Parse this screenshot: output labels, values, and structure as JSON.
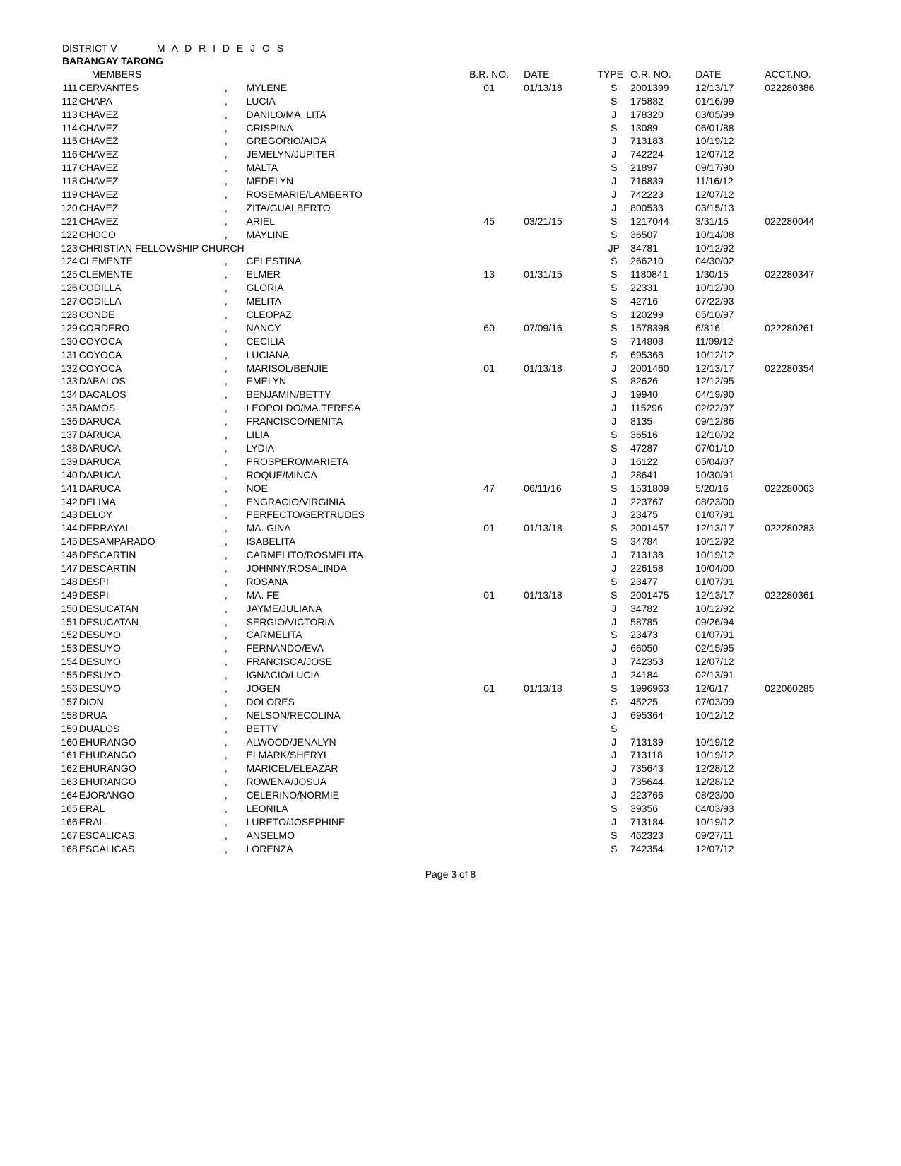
{
  "header": {
    "district": "DISTRICT V",
    "municipality": "M A D R I D E J O S",
    "barangay_label": "BARANGAY  TARONG",
    "members_label": "MEMBERS"
  },
  "columns": {
    "br_no": "B.R. NO.",
    "date": "DATE",
    "type": "TYPE",
    "or_no": "O.R. NO.",
    "or_date": "DATE",
    "acct_no": "ACCT.NO."
  },
  "rows": [
    {
      "num": "111",
      "last": "CERVANTES",
      "comma": ",",
      "first": "MYLENE",
      "br": "01",
      "date": "01/13/18",
      "type": "S",
      "or": "2001399",
      "ordate": "12/13/17",
      "acct": "022280386"
    },
    {
      "num": "112",
      "last": "CHAPA",
      "comma": ",",
      "first": "LUCIA",
      "br": "",
      "date": "",
      "type": "S",
      "or": "175882",
      "ordate": "01/16/99",
      "acct": ""
    },
    {
      "num": "113",
      "last": "CHAVEZ",
      "comma": ",",
      "first": "DANILO/MA. LITA",
      "br": "",
      "date": "",
      "type": "J",
      "or": "178320",
      "ordate": "03/05/99",
      "acct": ""
    },
    {
      "num": "114",
      "last": "CHAVEZ",
      "comma": ",",
      "first": "CRISPINA",
      "br": "",
      "date": "",
      "type": "S",
      "or": "13089",
      "ordate": "06/01/88",
      "acct": ""
    },
    {
      "num": "115",
      "last": "CHAVEZ",
      "comma": ",",
      "first": "GREGORIO/AIDA",
      "br": "",
      "date": "",
      "type": "J",
      "or": "713183",
      "ordate": "10/19/12",
      "acct": ""
    },
    {
      "num": "116",
      "last": "CHAVEZ",
      "comma": ",",
      "first": "JEMELYN/JUPITER",
      "br": "",
      "date": "",
      "type": "J",
      "or": "742224",
      "ordate": "12/07/12",
      "acct": ""
    },
    {
      "num": "117",
      "last": "CHAVEZ",
      "comma": ",",
      "first": "MALTA",
      "br": "",
      "date": "",
      "type": "S",
      "or": "21897",
      "ordate": "09/17/90",
      "acct": ""
    },
    {
      "num": "118",
      "last": "CHAVEZ",
      "comma": ",",
      "first": "MEDELYN",
      "br": "",
      "date": "",
      "type": "J",
      "or": "716839",
      "ordate": "11/16/12",
      "acct": ""
    },
    {
      "num": "119",
      "last": "CHAVEZ",
      "comma": ",",
      "first": "ROSEMARIE/LAMBERTO",
      "br": "",
      "date": "",
      "type": "J",
      "or": "742223",
      "ordate": "12/07/12",
      "acct": ""
    },
    {
      "num": "120",
      "last": "CHAVEZ",
      "comma": ",",
      "first": "ZITA/GUALBERTO",
      "br": "",
      "date": "",
      "type": "J",
      "or": "800533",
      "ordate": "03/15/13",
      "acct": ""
    },
    {
      "num": "121",
      "last": "CHAVEZ",
      "comma": ",",
      "first": "ARIEL",
      "br": "45",
      "date": "03/21/15",
      "type": "S",
      "or": "1217044",
      "ordate": "3/31/15",
      "acct": "022280044"
    },
    {
      "num": "122",
      "last": "CHOCO",
      "comma": ",",
      "first": "MAYLINE",
      "br": "",
      "date": "",
      "type": "S",
      "or": "36507",
      "ordate": "10/14/08",
      "acct": ""
    },
    {
      "num": "123",
      "last": "CHRISTIAN FELLOWSHIP CHURCH",
      "comma": "",
      "first": "",
      "br": "",
      "date": "",
      "type": "JP",
      "or": "34781",
      "ordate": "10/12/92",
      "acct": "",
      "span": true
    },
    {
      "num": "124",
      "last": "CLEMENTE",
      "comma": ",",
      "first": "CELESTINA",
      "br": "",
      "date": "",
      "type": "S",
      "or": "266210",
      "ordate": "04/30/02",
      "acct": ""
    },
    {
      "num": "125",
      "last": "CLEMENTE",
      "comma": ",",
      "first": "ELMER",
      "br": "13",
      "date": "01/31/15",
      "type": "S",
      "or": "1180841",
      "ordate": "1/30/15",
      "acct": "022280347"
    },
    {
      "num": "126",
      "last": "CODILLA",
      "comma": ",",
      "first": "GLORIA",
      "br": "",
      "date": "",
      "type": "S",
      "or": "22331",
      "ordate": "10/12/90",
      "acct": ""
    },
    {
      "num": "127",
      "last": "CODILLA",
      "comma": ",",
      "first": "MELITA",
      "br": "",
      "date": "",
      "type": "S",
      "or": "42716",
      "ordate": "07/22/93",
      "acct": ""
    },
    {
      "num": "128",
      "last": "CONDE",
      "comma": ",",
      "first": "CLEOPAZ",
      "br": "",
      "date": "",
      "type": "S",
      "or": "120299",
      "ordate": "05/10/97",
      "acct": ""
    },
    {
      "num": "129",
      "last": "CORDERO",
      "comma": ",",
      "first": "NANCY",
      "br": "60",
      "date": "07/09/16",
      "type": "S",
      "or": "1578398",
      "ordate": "6/816",
      "acct": "022280261"
    },
    {
      "num": "130",
      "last": "COYOCA",
      "comma": ",",
      "first": "CECILIA",
      "br": "",
      "date": "",
      "type": "S",
      "or": "714808",
      "ordate": "11/09/12",
      "acct": ""
    },
    {
      "num": "131",
      "last": "COYOCA",
      "comma": ",",
      "first": "LUCIANA",
      "br": "",
      "date": "",
      "type": "S",
      "or": "695368",
      "ordate": "10/12/12",
      "acct": ""
    },
    {
      "num": "132",
      "last": "COYOCA",
      "comma": ",",
      "first": "MARISOL/BENJIE",
      "br": "01",
      "date": "01/13/18",
      "type": "J",
      "or": "2001460",
      "ordate": "12/13/17",
      "acct": "022280354"
    },
    {
      "num": "133",
      "last": "DABALOS",
      "comma": ",",
      "first": "EMELYN",
      "br": "",
      "date": "",
      "type": "S",
      "or": "82626",
      "ordate": "12/12/95",
      "acct": ""
    },
    {
      "num": "134",
      "last": "DACALOS",
      "comma": ",",
      "first": "BENJAMIN/BETTY",
      "br": "",
      "date": "",
      "type": "J",
      "or": "19940",
      "ordate": "04/19/90",
      "acct": ""
    },
    {
      "num": "135",
      "last": "DAMOS",
      "comma": ",",
      "first": "LEOPOLDO/MA.TERESA",
      "br": "",
      "date": "",
      "type": "J",
      "or": "115296",
      "ordate": "02/22/97",
      "acct": ""
    },
    {
      "num": "136",
      "last": "DARUCA",
      "comma": ",",
      "first": "FRANCISCO/NENITA",
      "br": "",
      "date": "",
      "type": "J",
      "or": "8135",
      "ordate": "09/12/86",
      "acct": ""
    },
    {
      "num": "137",
      "last": "DARUCA",
      "comma": ",",
      "first": "LILIA",
      "br": "",
      "date": "",
      "type": "S",
      "or": "36516",
      "ordate": "12/10/92",
      "acct": ""
    },
    {
      "num": "138",
      "last": "DARUCA",
      "comma": ",",
      "first": "LYDIA",
      "br": "",
      "date": "",
      "type": "S",
      "or": "47287",
      "ordate": "07/01/10",
      "acct": ""
    },
    {
      "num": "139",
      "last": "DARUCA",
      "comma": ",",
      "first": "PROSPERO/MARIETA",
      "br": "",
      "date": "",
      "type": "J",
      "or": "16122",
      "ordate": "05/04/07",
      "acct": ""
    },
    {
      "num": "140",
      "last": "DARUCA",
      "comma": ",",
      "first": "ROQUE/MINCA",
      "br": "",
      "date": "",
      "type": "J",
      "or": "28641",
      "ordate": "10/30/91",
      "acct": ""
    },
    {
      "num": "141",
      "last": "DARUCA",
      "comma": ",",
      "first": "NOE",
      "br": "47",
      "date": "06/11/16",
      "type": "S",
      "or": "1531809",
      "ordate": "5/20/16",
      "acct": "022280063"
    },
    {
      "num": "142",
      "last": "DELIMA",
      "comma": ",",
      "first": "ENGRACIO/VIRGINIA",
      "br": "",
      "date": "",
      "type": "J",
      "or": "223767",
      "ordate": "08/23/00",
      "acct": ""
    },
    {
      "num": "143",
      "last": "DELOY",
      "comma": ",",
      "first": "PERFECTO/GERTRUDES",
      "br": "",
      "date": "",
      "type": "J",
      "or": "23475",
      "ordate": "01/07/91",
      "acct": ""
    },
    {
      "num": "144",
      "last": "DERRAYAL",
      "comma": ",",
      "first": "MA. GINA",
      "br": "01",
      "date": "01/13/18",
      "type": "S",
      "or": "2001457",
      "ordate": "12/13/17",
      "acct": "022280283"
    },
    {
      "num": "145",
      "last": "DESAMPARADO",
      "comma": ",",
      "first": "ISABELITA",
      "br": "",
      "date": "",
      "type": "S",
      "or": "34784",
      "ordate": "10/12/92",
      "acct": ""
    },
    {
      "num": "146",
      "last": "DESCARTIN",
      "comma": ",",
      "first": "CARMELITO/ROSMELITA",
      "br": "",
      "date": "",
      "type": "J",
      "or": "713138",
      "ordate": "10/19/12",
      "acct": ""
    },
    {
      "num": "147",
      "last": "DESCARTIN",
      "comma": ",",
      "first": "JOHNNY/ROSALINDA",
      "br": "",
      "date": "",
      "type": "J",
      "or": "226158",
      "ordate": "10/04/00",
      "acct": ""
    },
    {
      "num": "148",
      "last": "DESPI",
      "comma": ",",
      "first": "ROSANA",
      "br": "",
      "date": "",
      "type": "S",
      "or": "23477",
      "ordate": "01/07/91",
      "acct": ""
    },
    {
      "num": "149",
      "last": "DESPI",
      "comma": ",",
      "first": "MA. FE",
      "br": "01",
      "date": "01/13/18",
      "type": "S",
      "or": "2001475",
      "ordate": "12/13/17",
      "acct": "022280361"
    },
    {
      "num": "150",
      "last": "DESUCATAN",
      "comma": ",",
      "first": "JAYME/JULIANA",
      "br": "",
      "date": "",
      "type": "J",
      "or": "34782",
      "ordate": "10/12/92",
      "acct": ""
    },
    {
      "num": "151",
      "last": "DESUCATAN",
      "comma": ",",
      "first": "SERGIO/VICTORIA",
      "br": "",
      "date": "",
      "type": "J",
      "or": "58785",
      "ordate": "09/26/94",
      "acct": ""
    },
    {
      "num": "152",
      "last": "DESUYO",
      "comma": ",",
      "first": "CARMELITA",
      "br": "",
      "date": "",
      "type": "S",
      "or": "23473",
      "ordate": "01/07/91",
      "acct": ""
    },
    {
      "num": "153",
      "last": "DESUYO",
      "comma": ",",
      "first": "FERNANDO/EVA",
      "br": "",
      "date": "",
      "type": "J",
      "or": "66050",
      "ordate": "02/15/95",
      "acct": ""
    },
    {
      "num": "154",
      "last": "DESUYO",
      "comma": ",",
      "first": "FRANCISCA/JOSE",
      "br": "",
      "date": "",
      "type": "J",
      "or": "742353",
      "ordate": "12/07/12",
      "acct": ""
    },
    {
      "num": "155",
      "last": "DESUYO",
      "comma": ",",
      "first": "IGNACIO/LUCIA",
      "br": "",
      "date": "",
      "type": "J",
      "or": "24184",
      "ordate": "02/13/91",
      "acct": ""
    },
    {
      "num": "156",
      "last": "DESUYO",
      "comma": ",",
      "first": "JOGEN",
      "br": "01",
      "date": "01/13/18",
      "type": "S",
      "or": "1996963",
      "ordate": "12/6/17",
      "acct": "022060285"
    },
    {
      "num": "157",
      "last": "DION",
      "comma": ",",
      "first": "DOLORES",
      "br": "",
      "date": "",
      "type": "S",
      "or": "45225",
      "ordate": "07/03/09",
      "acct": ""
    },
    {
      "num": "158",
      "last": "DRUA",
      "comma": ",",
      "first": "NELSON/RECOLINA",
      "br": "",
      "date": "",
      "type": "J",
      "or": "695364",
      "ordate": "10/12/12",
      "acct": ""
    },
    {
      "num": "159",
      "last": "DUALOS",
      "comma": ",",
      "first": "BETTY",
      "br": "",
      "date": "",
      "type": "S",
      "or": "",
      "ordate": "",
      "acct": ""
    },
    {
      "num": "160",
      "last": "EHURANGO",
      "comma": ",",
      "first": "ALWOOD/JENALYN",
      "br": "",
      "date": "",
      "type": "J",
      "or": "713139",
      "ordate": "10/19/12",
      "acct": ""
    },
    {
      "num": "161",
      "last": "EHURANGO",
      "comma": ",",
      "first": "ELMARK/SHERYL",
      "br": "",
      "date": "",
      "type": "J",
      "or": "713118",
      "ordate": "10/19/12",
      "acct": ""
    },
    {
      "num": "162",
      "last": "EHURANGO",
      "comma": ",",
      "first": "MARICEL/ELEAZAR",
      "br": "",
      "date": "",
      "type": "J",
      "or": "735643",
      "ordate": "12/28/12",
      "acct": ""
    },
    {
      "num": "163",
      "last": "EHURANGO",
      "comma": ",",
      "first": "ROWENA/JOSUA",
      "br": "",
      "date": "",
      "type": "J",
      "or": "735644",
      "ordate": "12/28/12",
      "acct": ""
    },
    {
      "num": "164",
      "last": "EJORANGO",
      "comma": ",",
      "first": "CELERINO/NORMIE",
      "br": "",
      "date": "",
      "type": "J",
      "or": "223766",
      "ordate": "08/23/00",
      "acct": ""
    },
    {
      "num": "165",
      "last": "ERAL",
      "comma": ",",
      "first": "LEONILA",
      "br": "",
      "date": "",
      "type": "S",
      "or": "39356",
      "ordate": "04/03/93",
      "acct": ""
    },
    {
      "num": "166",
      "last": "ERAL",
      "comma": ",",
      "first": "LURETO/JOSEPHINE",
      "br": "",
      "date": "",
      "type": "J",
      "or": "713184",
      "ordate": "10/19/12",
      "acct": ""
    },
    {
      "num": "167",
      "last": "ESCALICAS",
      "comma": ",",
      "first": "ANSELMO",
      "br": "",
      "date": "",
      "type": "S",
      "or": "462323",
      "ordate": "09/27/11",
      "acct": ""
    },
    {
      "num": "168",
      "last": "ESCALICAS",
      "comma": ",",
      "first": "LORENZA",
      "br": "",
      "date": "",
      "type": "S",
      "or": "742354",
      "ordate": "12/07/12",
      "acct": ""
    }
  ],
  "footer": "Page 3 of 8"
}
